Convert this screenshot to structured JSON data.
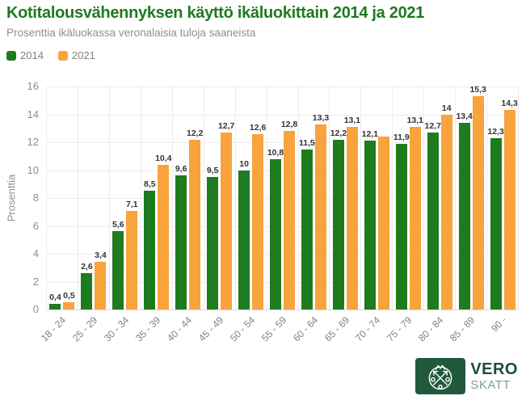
{
  "chart_data": {
    "type": "bar",
    "title": "Kotitalousvähennyksen käyttö ikäluokittain 2014 ja 2021",
    "subtitle": "Prosenttia ikäluokassa veronalaisia tuloja saaneista",
    "ylabel": "Prosenttia",
    "xlabel": "",
    "ylim": [
      0,
      16
    ],
    "yticks": [
      0,
      2,
      4,
      6,
      8,
      10,
      12,
      14,
      16
    ],
    "grid": true,
    "legend_position": "top-left",
    "x_tick_rotation": -45,
    "categories": [
      "18 - 24",
      "25 - 29",
      "30 - 34",
      "35 - 39",
      "40 - 44",
      "45 - 49",
      "50 - 54",
      "55 - 59",
      "60 - 64",
      "65 - 69",
      "70 - 74",
      "75 - 79",
      "80 - 84",
      "85 - 89",
      "90 -"
    ],
    "series": [
      {
        "name": "2014",
        "color": "#1e7b1e",
        "values": [
          0.4,
          2.6,
          5.6,
          8.5,
          9.6,
          9.5,
          10,
          10.8,
          11.5,
          12.2,
          12.1,
          11.9,
          12.7,
          13.4,
          12.3
        ],
        "labels": [
          "0,4",
          "2,6",
          "5,6",
          "8,5",
          "9,6",
          "9,5",
          "10",
          "10,8",
          "11,5",
          "12,2",
          "12,1",
          "11,9",
          "12,7",
          "13,4",
          "12,3"
        ]
      },
      {
        "name": "2021",
        "color": "#f8a33c",
        "values": [
          0.5,
          3.4,
          7.1,
          10.4,
          12.2,
          12.7,
          12.6,
          12.8,
          13.3,
          13.1,
          12.4,
          13.1,
          14,
          15.3,
          14.3
        ],
        "labels": [
          "0,5",
          "3,4",
          "7,1",
          "10,4",
          "12,2",
          "12,7",
          "12,6",
          "12,8",
          "13,3",
          "13,1",
          "",
          "13,1",
          "14",
          "15,3",
          "14,3"
        ]
      }
    ]
  },
  "colors": {
    "title_green": "#1e7b1e",
    "bar_green": "#1e7b1e",
    "bar_orange": "#f8a33c",
    "logo_green": "#20593b",
    "text_gray": "#8f8f8f",
    "value_label": "#333333",
    "gridline": "#ededed"
  },
  "logo": {
    "line1": "VERO",
    "line2": "SKATT"
  }
}
